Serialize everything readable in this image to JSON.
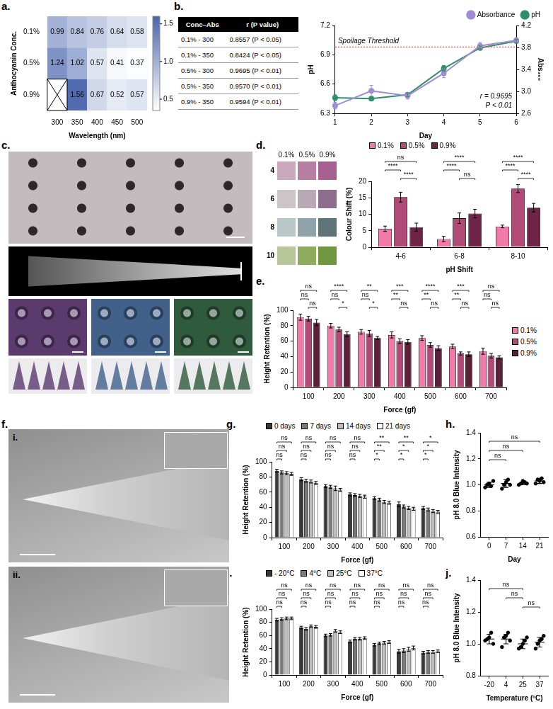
{
  "panel_labels": [
    "a.",
    "b.",
    "c.",
    "d.",
    "e.",
    "f.",
    "g.",
    "h.",
    "i.",
    "j."
  ],
  "photo_labels": [
    "i.",
    "ii."
  ],
  "table": {
    "header": [
      "Conc–Abs",
      "r (P value)"
    ],
    "rows": [
      [
        "0.1% - 300",
        "0.8557 (P < 0.05)"
      ],
      [
        "0.1% - 350",
        "0.8424 (P < 0.05)"
      ],
      [
        "0.5% - 300",
        "0.9695 (P < 0.01)"
      ],
      [
        "0.5% - 350",
        "0.9570 (P < 0.01)"
      ],
      [
        "0.9% - 350",
        "0.9594 (P < 0.01)"
      ]
    ]
  },
  "swatches": {
    "columns": [
      "0.1%",
      "0.5%",
      "0.9%"
    ],
    "rows": [
      "4",
      "6",
      "8",
      "10"
    ],
    "colors": [
      [
        "#c9a9bb",
        "#b77fa4",
        "#a6608f"
      ],
      [
        "#cbc5c8",
        "#b9a9b4",
        "#8e6c8c"
      ],
      [
        "#b9c7c8",
        "#8fa3ab",
        "#5e7478"
      ],
      [
        "#b7c79a",
        "#8fab5e",
        "#70973f"
      ]
    ]
  },
  "chart_data": [
    {
      "type": "heatmap",
      "x_label": "Wavelength (nm)",
      "y_label": "Anthocyanin Conc.",
      "categories": [
        300,
        350,
        400,
        450,
        500
      ],
      "rows": [
        "0.1%",
        "0.5%",
        "0.9%"
      ],
      "cells": [
        [
          0.99,
          0.84,
          0.76,
          0.64,
          0.58
        ],
        [
          1.24,
          1.02,
          0.57,
          0.41,
          0.37
        ],
        [
          null,
          1.56,
          0.67,
          0.52,
          0.57
        ]
      ],
      "colorbar": {
        "range": [
          0.35,
          1.6
        ],
        "ticks": [
          0.5,
          {
            "value": 1,
            "label": "1.0"
          },
          1.5
        ],
        "colors": [
          "#ffffff",
          "#4a66ad"
        ]
      },
      "data_labels": true
    },
    {
      "type": "line",
      "x_label": "Day",
      "y_label": "pH",
      "y2_label": "Abs₃₀₀",
      "categories": [
        1,
        2,
        3,
        4,
        5,
        6
      ],
      "series": [
        {
          "name": "Absorbance",
          "color": "#a08cd4",
          "axis": "y2",
          "marker": "circle",
          "values": [
            2.74,
            3.01,
            2.92,
            3.33,
            3.83,
            3.93
          ],
          "errors": [
            0.06,
            0.1,
            0.06,
            0.08,
            0.06,
            0.05
          ]
        },
        {
          "name": "pH",
          "color": "#2f8f6a",
          "marker": "circle",
          "values": [
            6.46,
            6.45,
            6.49,
            6.76,
            6.97,
            7.04
          ],
          "errors": [
            0.03,
            0.02,
            0.02,
            0.03,
            0.02,
            0.02
          ]
        }
      ],
      "ylim": [
        6.3,
        7.2
      ],
      "yticks": [
        6.3,
        6.6,
        6.9,
        7.2
      ],
      "y2lim": [
        2.6,
        4.2
      ],
      "y2ticks": [
        2.6,
        {
          "value": 3,
          "label": "3.0"
        },
        3.4,
        3.8,
        4.2
      ],
      "annotations": [
        {
          "text": "Spoilage Threshold",
          "y": 6.98,
          "line_style": "dotted"
        },
        {
          "text": "r = 0.9695"
        },
        {
          "text": "P < 0.01"
        }
      ],
      "legend": "top",
      "grid": false
    },
    {
      "type": "bar",
      "x_label": "pH Shift",
      "y_label": "Colour Shift (%)",
      "categories": [
        "4-6",
        "6-8",
        "8-10"
      ],
      "series": [
        {
          "name": "0.1%",
          "color": "#f27aa9",
          "values": [
            5.6,
            2.5,
            6.3
          ],
          "errors": [
            0.8,
            0.8,
            0.4
          ]
        },
        {
          "name": "0.5%",
          "color": "#b24a78",
          "values": [
            15.2,
            8.8,
            17.8
          ],
          "errors": [
            1.5,
            1.6,
            1.2
          ]
        },
        {
          "name": "0.9%",
          "color": "#6e2446",
          "values": [
            6.1,
            10.2,
            12
          ],
          "errors": [
            1.2,
            1.3,
            1.3
          ]
        }
      ],
      "ylim": [
        0,
        20
      ],
      "yticks": [
        0,
        5,
        10,
        15,
        20
      ],
      "significance": [
        {
          "from": "0.1%",
          "to": "0.9%",
          "labels": [
            "ns",
            "****",
            "****"
          ]
        },
        {
          "from": "0.1%",
          "to": "0.5%",
          "labels": [
            "****",
            "****",
            "****"
          ]
        },
        {
          "from": "0.5%",
          "to": "0.9%",
          "labels": [
            "****",
            "ns",
            "****"
          ]
        }
      ],
      "legend": "top",
      "grid": false
    },
    {
      "type": "bar",
      "x_label": "Force (gf)",
      "y_label": "Height Retention (%)",
      "categories": [
        "100",
        "200",
        "300",
        "400",
        "500",
        "600",
        "700"
      ],
      "series": [
        {
          "name": "0.1%",
          "color": "#f27aa9",
          "values": [
            91,
            80,
            72,
            68,
            64,
            53,
            47
          ],
          "errors": [
            4,
            3,
            3,
            4,
            3,
            3,
            4
          ]
        },
        {
          "name": "0.5%",
          "color": "#b24a78",
          "values": [
            89,
            75,
            70,
            60,
            55,
            44,
            41
          ],
          "errors": [
            3,
            3,
            4,
            3,
            3,
            2,
            3
          ]
        },
        {
          "name": "0.9%",
          "color": "#5e2038",
          "values": [
            84,
            69,
            64,
            59,
            51,
            43,
            39
          ],
          "errors": [
            4,
            3,
            2,
            3,
            3,
            3,
            2
          ]
        }
      ],
      "ylim": [
        0,
        100
      ],
      "yticks": [
        0,
        20,
        40,
        60,
        80,
        100
      ],
      "significance": [
        {
          "from": "0.1%",
          "to": "0.9%",
          "labels": [
            "ns",
            "****",
            "**",
            "***",
            "****",
            "***",
            "ns"
          ]
        },
        {
          "from": "0.1%",
          "to": "0.5%",
          "labels": [
            "ns",
            "ns",
            "ns",
            "**",
            "**",
            "**",
            "ns"
          ]
        },
        {
          "from": "0.5%",
          "to": "0.9%",
          "labels": [
            "ns",
            "*",
            "*",
            "ns",
            "ns",
            "ns",
            "ns"
          ]
        }
      ],
      "legend": "right",
      "grid": false
    },
    {
      "type": "bar",
      "x_label": "Force (gf)",
      "y_label": "Height Retention (%)",
      "categories": [
        "100",
        "200",
        "300",
        "400",
        "500",
        "600",
        "700"
      ],
      "series": [
        {
          "name": "0 days",
          "color": "#3a3a3a",
          "values": [
            88,
            77,
            68,
            57,
            52,
            44,
            39
          ],
          "errors": [
            2,
            2,
            2,
            2,
            2,
            3,
            2
          ]
        },
        {
          "name": "7 days",
          "color": "#7a7a7a",
          "values": [
            86,
            75,
            67,
            56,
            50,
            41,
            37
          ],
          "errors": [
            2,
            2,
            2,
            2,
            2,
            2,
            2
          ]
        },
        {
          "name": "14 days",
          "color": "#bdbdbd",
          "values": [
            85,
            74,
            65,
            55,
            47,
            39,
            35
          ],
          "errors": [
            2,
            2,
            3,
            2,
            2,
            2,
            2
          ]
        },
        {
          "name": "21 days",
          "color": "#ffffff",
          "values": [
            84,
            72,
            63,
            54,
            46,
            38,
            34
          ],
          "errors": [
            2,
            2,
            2,
            2,
            2,
            2,
            2
          ]
        }
      ],
      "ylim": [
        0,
        100
      ],
      "yticks": [
        0,
        20,
        40,
        60,
        80,
        100
      ],
      "significance": [
        {
          "from": "0 days",
          "to": "21 days",
          "labels": [
            "ns",
            "ns",
            "ns",
            "ns",
            "**",
            "**",
            "*"
          ]
        },
        {
          "from": "0 days",
          "to": "14 days",
          "labels": [
            "ns",
            "ns",
            "ns",
            "ns",
            "**",
            "*",
            "*"
          ]
        },
        {
          "from": "0 days",
          "to": "7 days",
          "labels": [
            "ns",
            "ns",
            "ns",
            "ns",
            "*",
            "*",
            "*"
          ]
        }
      ],
      "legend": "top",
      "grid": false
    },
    {
      "type": "scatter",
      "x_label": "Day",
      "y_label": "pH 8.0 Blue Intensity",
      "categories": [
        "0",
        "7",
        "14",
        "21"
      ],
      "groups": [
        [
          0.98,
          1.0,
          1.01,
          0.99,
          1.03
        ],
        [
          0.97,
          1.0,
          1.02,
          1.04,
          1.0
        ],
        [
          1.0,
          1.01,
          1.03,
          1.02,
          1.01
        ],
        [
          1.01,
          1.04,
          1.03,
          1.05,
          1.02
        ]
      ],
      "means": [
        1.0,
        1.01,
        1.01,
        1.03
      ],
      "errors": [
        0.02,
        0.03,
        0.01,
        0.02
      ],
      "marker": "circle",
      "ylim": [
        0.6,
        1.4
      ],
      "yticks": [
        0.6,
        0.8,
        {
          "value": 1,
          "label": "1.0"
        },
        1.2,
        1.4
      ],
      "significance": [
        {
          "from": "0",
          "to": "21",
          "label": "ns"
        },
        {
          "from": "0",
          "to": "14",
          "label": "ns"
        },
        {
          "from": "0",
          "to": "7",
          "label": "ns"
        }
      ],
      "grid": false
    },
    {
      "type": "bar",
      "x_label": "Force (gf)",
      "y_label": "Height Retention (%)",
      "categories": [
        "100",
        "200",
        "300",
        "400",
        "500",
        "600",
        "700"
      ],
      "series": [
        {
          "name": "- 20°C",
          "color": "#3a3a3a",
          "values": [
            84,
            72,
            60,
            51,
            46,
            36,
            34
          ],
          "errors": [
            2,
            2,
            2,
            2,
            2,
            3,
            2
          ]
        },
        {
          "name": "4°C",
          "color": "#7a7a7a",
          "values": [
            85,
            70,
            61,
            55,
            48,
            37,
            35
          ],
          "errors": [
            2,
            2,
            2,
            2,
            2,
            3,
            2
          ]
        },
        {
          "name": "25°C",
          "color": "#bdbdbd",
          "values": [
            86,
            74,
            67,
            55,
            49,
            39,
            35
          ],
          "errors": [
            2,
            2,
            2,
            2,
            2,
            3,
            2
          ]
        },
        {
          "name": "37°C",
          "color": "#ffffff",
          "values": [
            86,
            73,
            65,
            56,
            50,
            41,
            36
          ],
          "errors": [
            2,
            2,
            2,
            2,
            2,
            3,
            2
          ]
        }
      ],
      "ylim": [
        0,
        100
      ],
      "yticks": [
        0,
        20,
        40,
        60,
        80,
        100
      ],
      "significance": [
        {
          "from": "- 20°C",
          "to": "37°C",
          "labels": [
            "ns",
            "ns",
            "ns",
            "ns",
            "ns",
            "ns",
            "ns"
          ]
        },
        {
          "from": "- 20°C",
          "to": "25°C",
          "labels": [
            "ns",
            "ns",
            "ns",
            "ns",
            "ns",
            "ns",
            "ns"
          ]
        },
        {
          "from": "- 20°C",
          "to": "4°C",
          "labels": [
            "ns",
            "ns",
            "ns",
            "ns",
            "ns",
            "ns",
            "ns"
          ]
        }
      ],
      "legend": "top",
      "grid": false
    },
    {
      "type": "scatter",
      "x_label": "Temperature (ºC)",
      "y_label": "pH 8.0 Blue Intensity",
      "categories": [
        "-20",
        "4",
        "25",
        "37"
      ],
      "groups": [
        [
          1.02,
          1.03,
          1.04,
          1.07,
          1.0
        ],
        [
          0.98,
          1.04,
          1.05,
          1.07,
          1.02
        ],
        [
          0.97,
          0.98,
          1.0,
          1.02,
          1.04
        ],
        [
          0.97,
          1.0,
          1.02,
          1.03,
          1.05
        ]
      ],
      "means": [
        1.03,
        1.03,
        1.0,
        1.01
      ],
      "errors": [
        0.03,
        0.03,
        0.03,
        0.03
      ],
      "marker": "circle",
      "ylim": [
        0.8,
        1.4
      ],
      "yticks": [
        0.8,
        {
          "value": 1,
          "label": "1.0"
        },
        1.2,
        1.4
      ],
      "significance": [
        {
          "from": "-20",
          "to": "25",
          "label": "ns"
        },
        {
          "from": "4",
          "to": "25",
          "label": "ns"
        },
        {
          "from": "25",
          "to": "37",
          "label": "ns"
        }
      ],
      "grid": false
    }
  ]
}
